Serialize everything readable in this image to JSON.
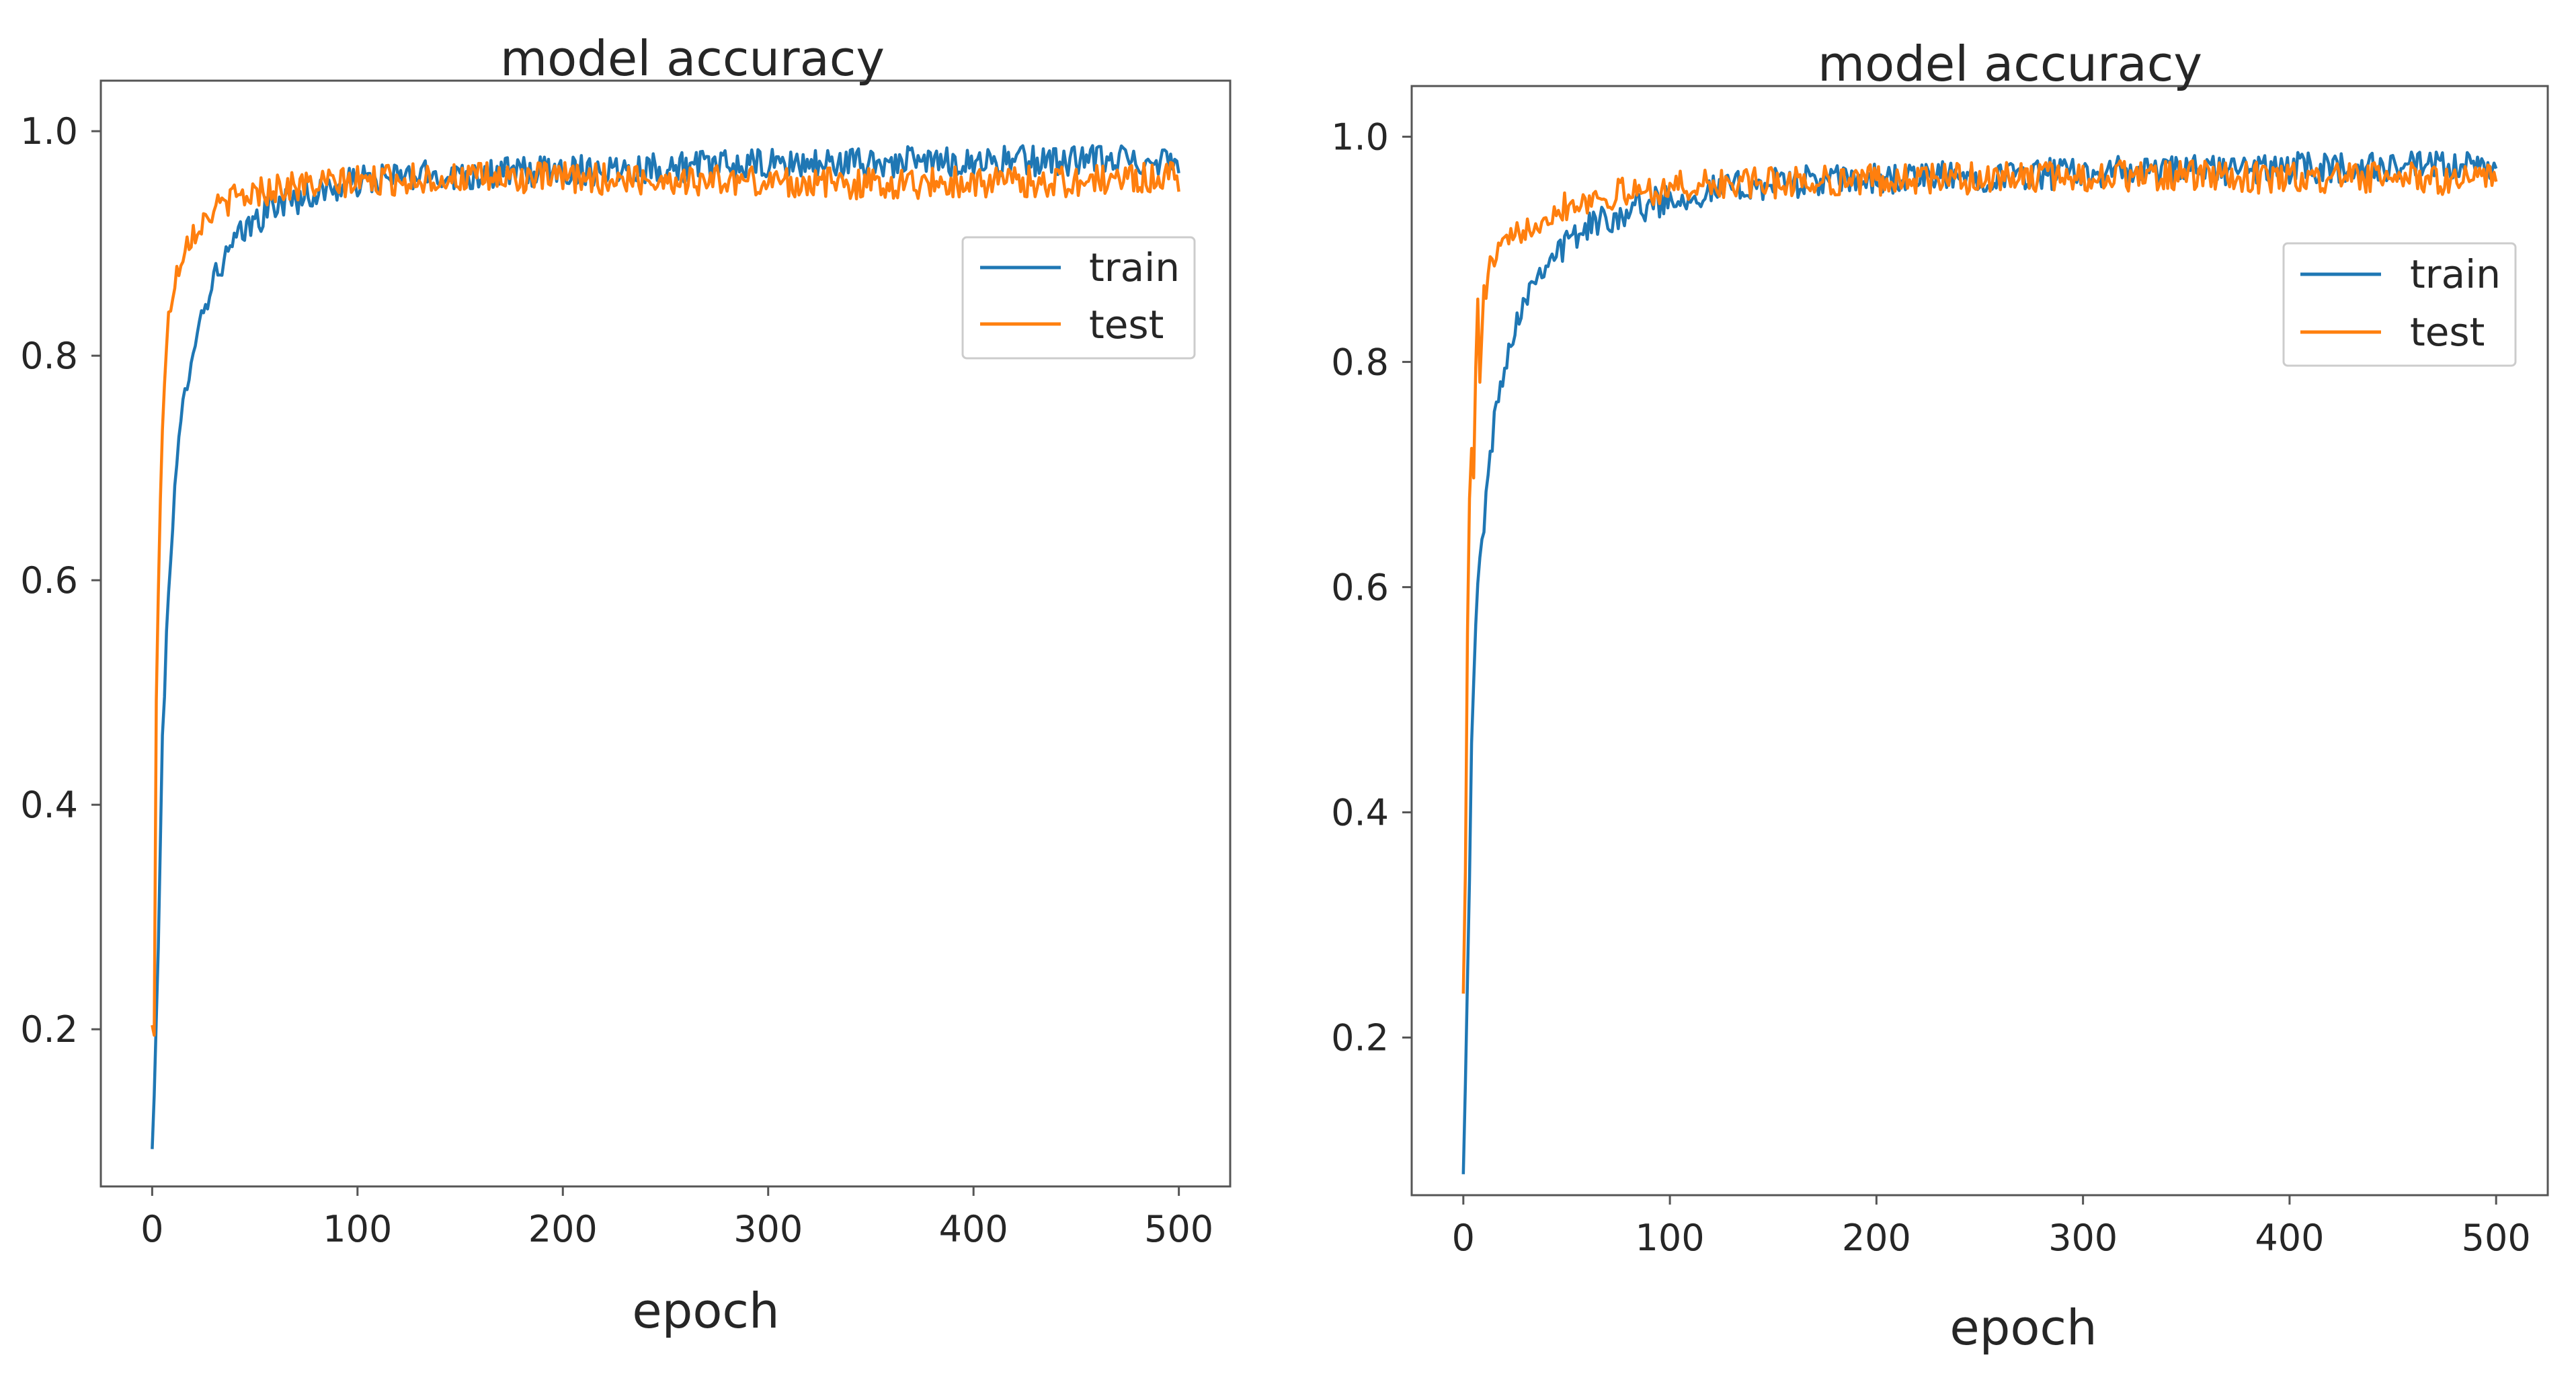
{
  "colors": {
    "train": "#1f77b4",
    "test": "#ff7f0e",
    "axes": "#555555",
    "text": "#262626"
  },
  "chart_data": [
    {
      "type": "line",
      "title": "model accuracy",
      "xlabel": "epoch",
      "ylabel": "",
      "xlim": [
        -25,
        525
      ],
      "ylim": [
        0.06,
        1.045
      ],
      "xticks": [
        0,
        100,
        200,
        300,
        400,
        500
      ],
      "xtick_labels": [
        "0",
        "100",
        "200",
        "300",
        "400",
        "500"
      ],
      "yticks": [
        0.2,
        0.4,
        0.6,
        0.8,
        1.0
      ],
      "ytick_labels": [
        "0.2",
        "0.4",
        "0.6",
        "0.8",
        "1.0"
      ],
      "legend_position": "upper-right",
      "series": [
        {
          "name": "train",
          "color_key": "train",
          "x": [
            0,
            2,
            5,
            8,
            12,
            16,
            20,
            25,
            30,
            40,
            50,
            60,
            80,
            100,
            130,
            160,
            200,
            250,
            300,
            350,
            400,
            450,
            500
          ],
          "values": [
            0.09,
            0.2,
            0.45,
            0.6,
            0.7,
            0.77,
            0.81,
            0.84,
            0.87,
            0.9,
            0.92,
            0.935,
            0.945,
            0.955,
            0.96,
            0.962,
            0.965,
            0.968,
            0.97,
            0.972,
            0.973,
            0.974,
            0.975
          ]
        },
        {
          "name": "test",
          "color_key": "test",
          "x": [
            0,
            1,
            2,
            4,
            6,
            8,
            10,
            13,
            16,
            20,
            25,
            30,
            40,
            50,
            60,
            80,
            100,
            130,
            160,
            200,
            250,
            300,
            350,
            400,
            450,
            500
          ],
          "values": [
            0.2,
            0.19,
            0.5,
            0.68,
            0.78,
            0.83,
            0.86,
            0.88,
            0.9,
            0.91,
            0.92,
            0.93,
            0.94,
            0.945,
            0.95,
            0.952,
            0.955,
            0.958,
            0.958,
            0.958,
            0.957,
            0.955,
            0.953,
            0.955,
            0.955,
            0.96
          ]
        }
      ]
    },
    {
      "type": "line",
      "title": "model accuracy",
      "xlabel": "epoch",
      "ylabel": "",
      "xlim": [
        -25,
        525
      ],
      "ylim": [
        0.06,
        1.045
      ],
      "xticks": [
        0,
        100,
        200,
        300,
        400,
        500
      ],
      "xtick_labels": [
        "0",
        "100",
        "200",
        "300",
        "400",
        "500"
      ],
      "yticks": [
        0.2,
        0.4,
        0.6,
        0.8,
        1.0
      ],
      "ytick_labels": [
        "0.2",
        "0.4",
        "0.6",
        "0.8",
        "1.0"
      ],
      "legend_position": "upper-right",
      "series": [
        {
          "name": "train",
          "color_key": "train",
          "x": [
            0,
            2,
            4,
            6,
            8,
            12,
            16,
            20,
            25,
            30,
            40,
            50,
            60,
            80,
            100,
            130,
            160,
            200,
            250,
            300,
            350,
            400,
            450,
            500
          ],
          "values": [
            0.09,
            0.25,
            0.45,
            0.57,
            0.62,
            0.7,
            0.76,
            0.8,
            0.83,
            0.86,
            0.89,
            0.905,
            0.92,
            0.935,
            0.945,
            0.955,
            0.96,
            0.962,
            0.965,
            0.968,
            0.97,
            0.972,
            0.973,
            0.972
          ]
        },
        {
          "name": "test",
          "color_key": "test",
          "x": [
            0,
            1,
            2,
            3,
            4,
            5,
            6,
            7,
            8,
            10,
            14,
            18,
            25,
            30,
            40,
            50,
            60,
            80,
            100,
            130,
            160,
            200,
            250,
            300,
            350,
            400,
            450,
            500
          ],
          "values": [
            0.25,
            0.35,
            0.55,
            0.68,
            0.72,
            0.7,
            0.8,
            0.85,
            0.78,
            0.86,
            0.89,
            0.9,
            0.91,
            0.92,
            0.93,
            0.94,
            0.945,
            0.95,
            0.955,
            0.958,
            0.96,
            0.962,
            0.963,
            0.965,
            0.965,
            0.963,
            0.963,
            0.962
          ]
        }
      ]
    }
  ]
}
